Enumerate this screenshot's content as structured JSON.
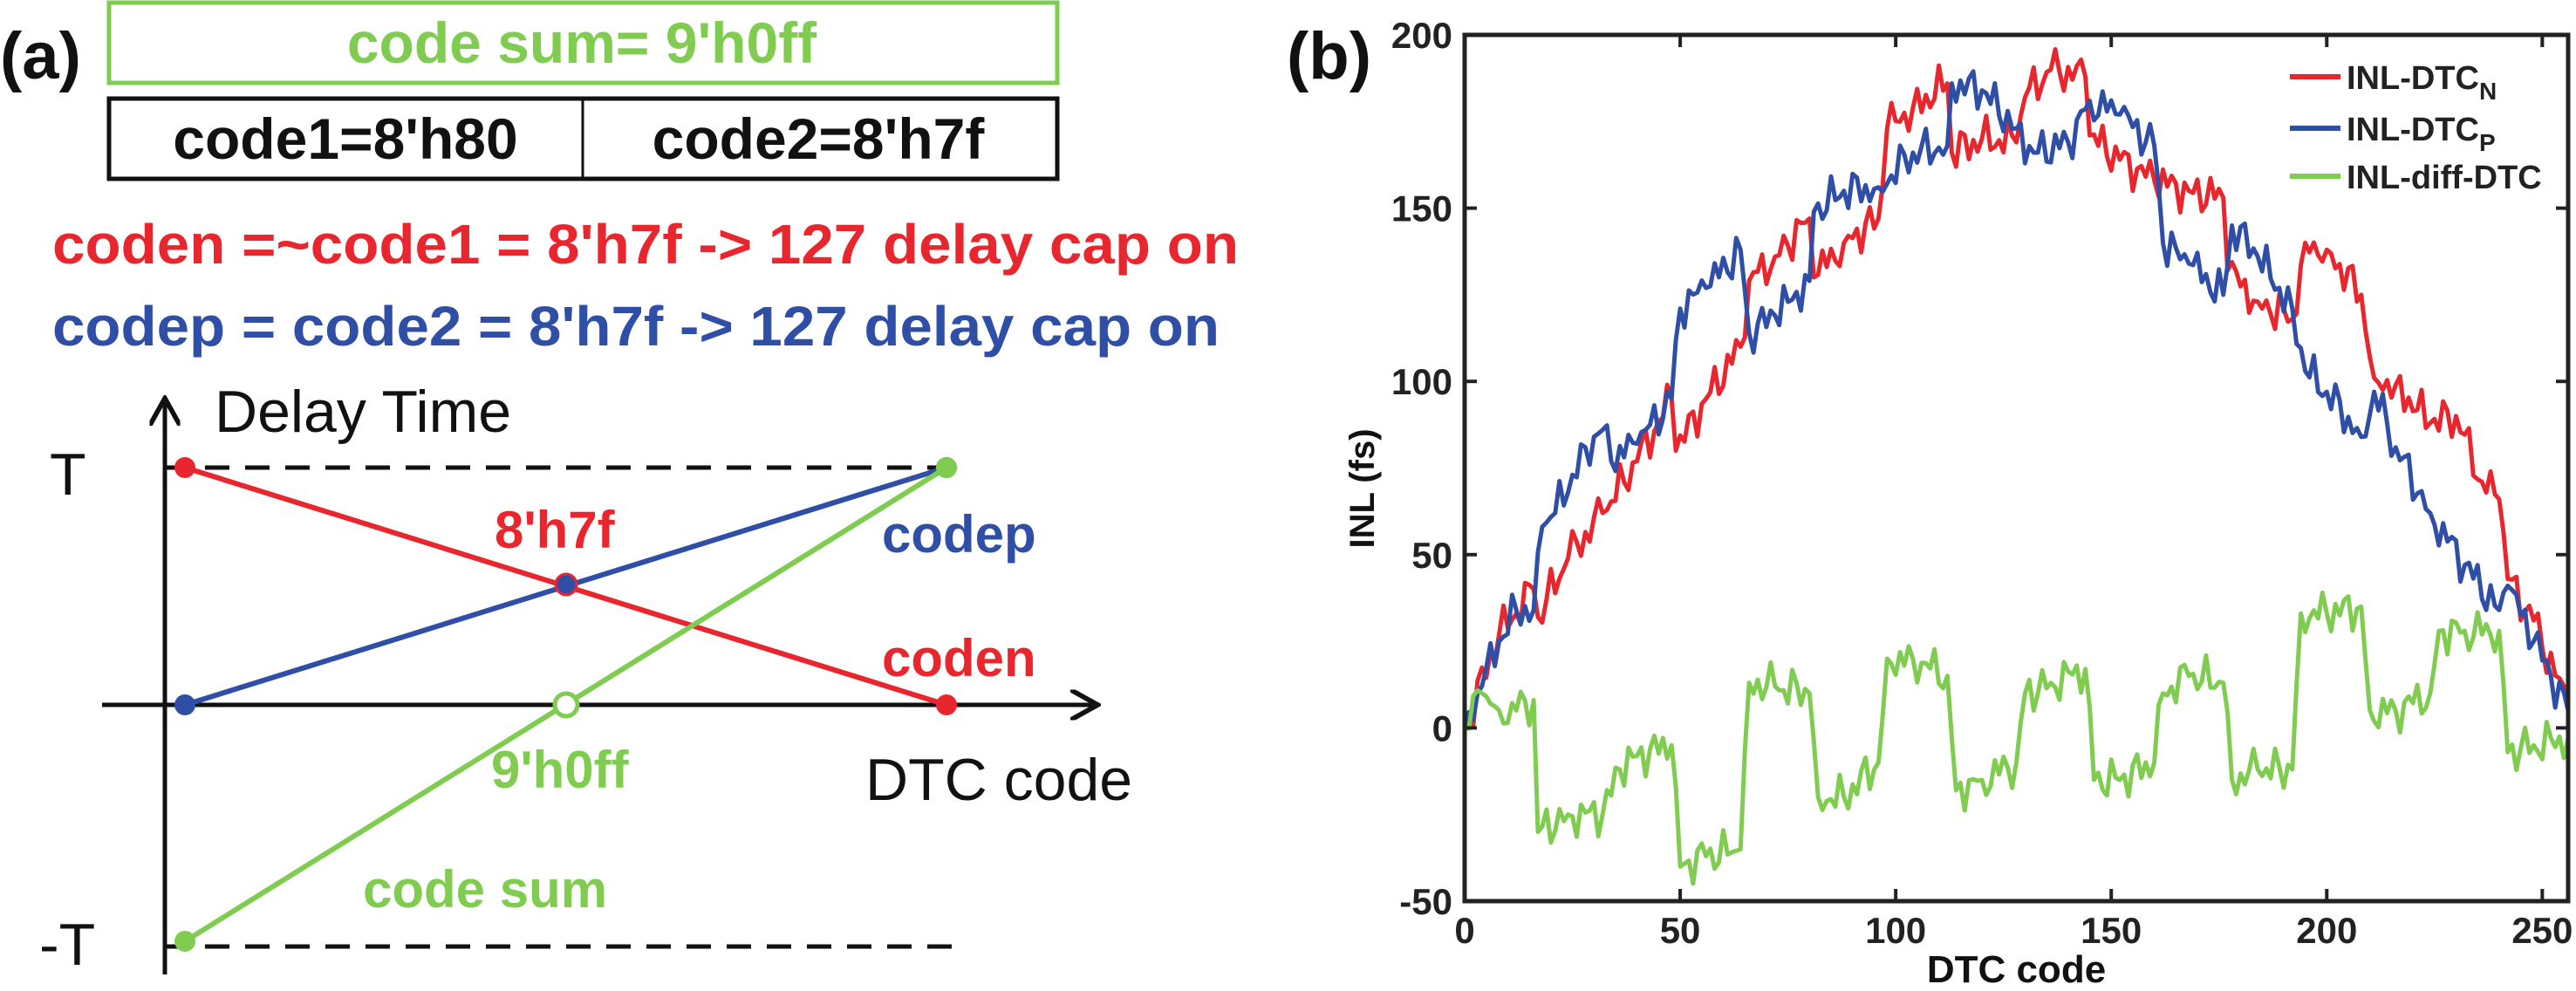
{
  "colors": {
    "red": "#e8262d",
    "blue": "#2f4fa6",
    "green": "#80cc50",
    "black": "#111111"
  },
  "panel_a": {
    "label": "(a)",
    "code_sum_box": "code sum= 9'h0ff",
    "code1_box": "code1=8'h80",
    "code2_box": "code2=8'h7f",
    "coden_line": "coden =~code1 = 8'h7f -> 127 delay cap on",
    "codep_line": "codep = code2 = 8'h7f -> 127 delay cap on",
    "diagram": {
      "y_axis_label": "Delay Time",
      "x_axis_label": "DTC code",
      "t_label": "T",
      "neg_t_label": "-T",
      "cross_label": "8'h7f",
      "codep_label": "codep",
      "coden_label": "coden",
      "zero_label": "9'h0ff",
      "code_sum_label": "code sum"
    }
  },
  "panel_b": {
    "label": "(b)"
  },
  "chart_data": {
    "type": "line",
    "title": "",
    "xlabel": "DTC code",
    "ylabel": "INL (fs)",
    "xlim": [
      0,
      256
    ],
    "ylim": [
      -50,
      200
    ],
    "xticks": [
      0,
      50,
      100,
      150,
      200,
      250
    ],
    "yticks": [
      -50,
      0,
      50,
      100,
      150,
      200
    ],
    "grid": false,
    "legend_position": "top-right",
    "series": [
      {
        "name": "INL-DTC",
        "subscript": "N",
        "color": "#e8262d",
        "x": [
          0,
          8,
          16,
          17,
          24,
          32,
          40,
          48,
          49,
          56,
          64,
          66,
          72,
          80,
          81,
          88,
          96,
          98,
          104,
          112,
          113,
          120,
          128,
          130,
          136,
          144,
          145,
          152,
          160,
          168,
          176,
          177,
          184,
          192,
          195,
          200,
          208,
          211,
          216,
          224,
          230,
          236,
          240,
          242,
          248,
          256
        ],
        "y": [
          0,
          27,
          40,
          32,
          49,
          62,
          77,
          95,
          80,
          95,
          110,
          129,
          136,
          147,
          130,
          140,
          147,
          173,
          179,
          186,
          166,
          170,
          169,
          182,
          190,
          188,
          171,
          164,
          158,
          155,
          153,
          132,
          123,
          118,
          140,
          138,
          125,
          101,
          99,
          88,
          90,
          71,
          66,
          43,
          31,
          6
        ]
      },
      {
        "name": "INL-DTC",
        "subscript": "P",
        "color": "#2f4fa6",
        "x": [
          0,
          4,
          8,
          12,
          16,
          18,
          24,
          28,
          32,
          34,
          40,
          48,
          50,
          56,
          64,
          66,
          72,
          80,
          81,
          88,
          96,
          104,
          112,
          113,
          120,
          128,
          132,
          140,
          145,
          152,
          160,
          162,
          168,
          176,
          178,
          184,
          192,
          195,
          200,
          208,
          211,
          216,
          224,
          232,
          240,
          242,
          248,
          256
        ],
        "y": [
          0,
          12,
          25,
          34,
          34,
          58,
          68,
          81,
          86,
          77,
          82,
          95,
          121,
          127,
          138,
          114,
          119,
          129,
          149,
          155,
          156,
          166,
          168,
          186,
          184,
          173,
          166,
          169,
          181,
          177,
          168,
          140,
          134,
          125,
          145,
          136,
          121,
          103,
          97,
          84,
          97,
          81,
          62,
          47,
          34,
          41,
          25,
          5
        ]
      },
      {
        "name": "INL-diff-DTC",
        "subscript": "",
        "color": "#80cc50",
        "x": [
          0,
          4,
          8,
          12,
          16,
          17,
          24,
          32,
          36,
          40,
          48,
          50,
          56,
          64,
          66,
          72,
          80,
          82,
          88,
          96,
          98,
          104,
          112,
          114,
          120,
          128,
          130,
          136,
          144,
          146,
          152,
          160,
          162,
          168,
          176,
          178,
          184,
          192,
          194,
          200,
          208,
          210,
          216,
          224,
          226,
          232,
          240,
          242,
          248,
          256
        ],
        "y": [
          0,
          10,
          5,
          5,
          8,
          -30,
          -25,
          -25,
          -12,
          -8,
          -5,
          -40,
          -37,
          -35,
          13,
          12,
          10,
          -20,
          -20,
          -10,
          20,
          20,
          15,
          -18,
          -15,
          -10,
          10,
          13,
          17,
          -15,
          -15,
          -10,
          10,
          15,
          13,
          -15,
          -12,
          -12,
          33,
          33,
          35,
          5,
          5,
          10,
          28,
          28,
          28,
          -7,
          -5,
          -3
        ]
      }
    ]
  }
}
